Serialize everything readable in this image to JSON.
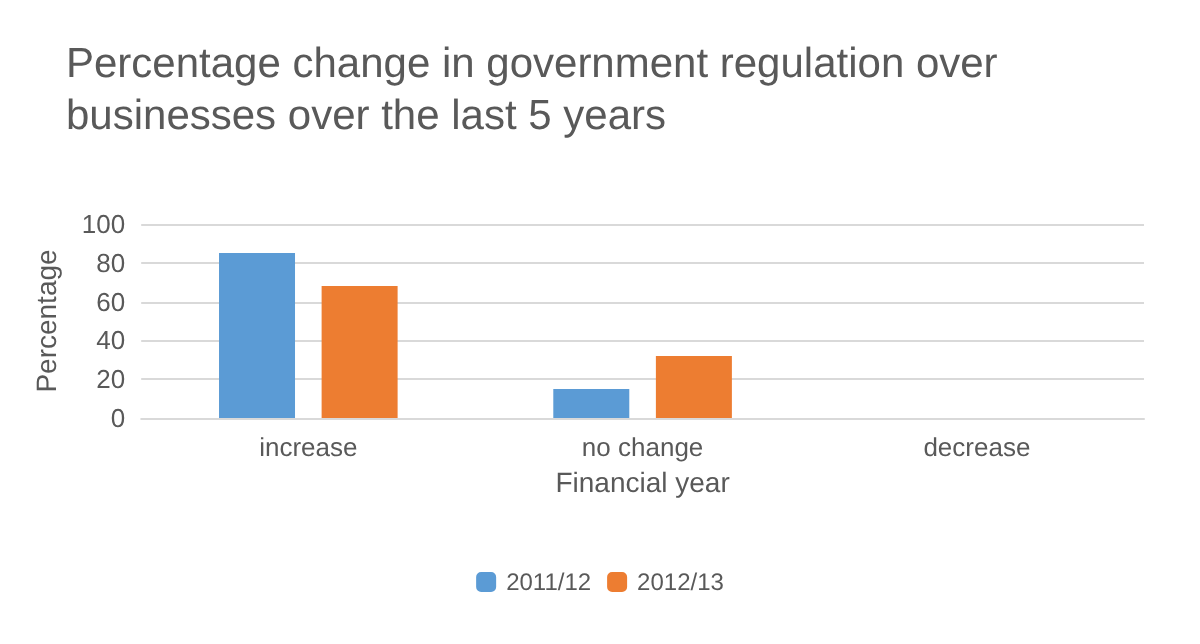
{
  "chart_data": {
    "type": "bar",
    "title": "Percentage change in government regulation over businesses over the last 5 years",
    "xlabel": "Financial year",
    "ylabel": "Percentage",
    "categories": [
      "increase",
      "no change",
      "decrease"
    ],
    "series": [
      {
        "name": "2011/12",
        "color": "#5b9bd5",
        "values": [
          85,
          15,
          0
        ]
      },
      {
        "name": "2012/13",
        "color": "#ed7d31",
        "values": [
          68,
          32,
          0
        ]
      }
    ],
    "ylim": [
      0,
      100
    ],
    "yticks": [
      0,
      20,
      40,
      60,
      80,
      100
    ],
    "grid": "y",
    "legend": "bottom"
  }
}
